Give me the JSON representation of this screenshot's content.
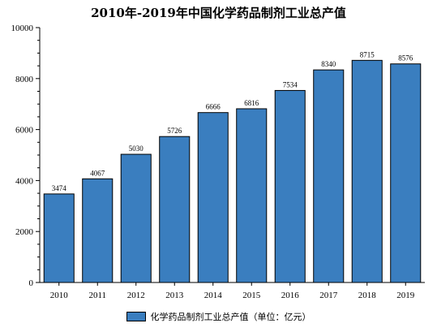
{
  "chart_data": {
    "type": "bar",
    "title": "2010年-2019年中国化学药品制剂工业总产值",
    "categories": [
      "2010",
      "2011",
      "2012",
      "2013",
      "2014",
      "2015",
      "2016",
      "2017",
      "2018",
      "2019"
    ],
    "series": [
      {
        "name": "化学药品制剂工业总产值（单位：亿元）",
        "values": [
          3474,
          4067,
          5030,
          5726,
          6666,
          6816,
          7534,
          8340,
          8715,
          8576
        ],
        "color": "#3a7ebf"
      }
    ],
    "ylim": [
      0,
      10000
    ],
    "yticks": [
      0,
      2000,
      4000,
      6000,
      8000,
      10000
    ],
    "data_labels": true,
    "legend_position": "bottom-center",
    "grid": false
  }
}
